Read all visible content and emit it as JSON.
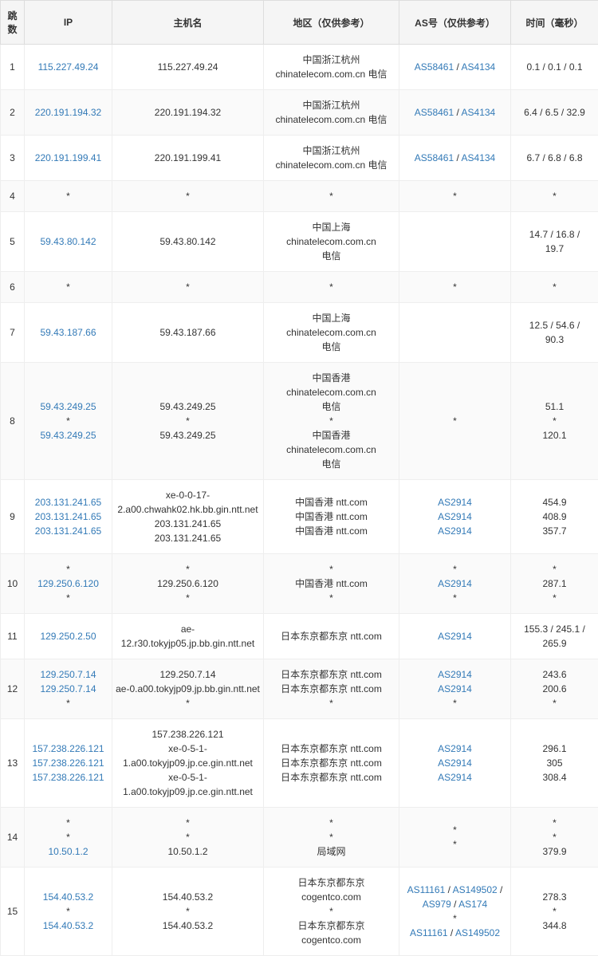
{
  "headers": {
    "hop": "跳数",
    "ip": "IP",
    "hostname": "主机名",
    "region": "地区（仅供参考）",
    "as": "AS号（仅供参考）",
    "time": "时间（毫秒）"
  },
  "rows": [
    {
      "hop": "1",
      "ip": [
        {
          "t": "link",
          "v": "115.227.49.24"
        }
      ],
      "host": [
        {
          "t": "text",
          "v": "115.227.49.24"
        }
      ],
      "region": [
        {
          "t": "text",
          "v": "中国浙江杭州"
        },
        {
          "t": "text",
          "v": "chinatelecom.com.cn 电信"
        }
      ],
      "as": [
        {
          "t": "aslist",
          "v": [
            "AS58461",
            "AS4134"
          ]
        }
      ],
      "time": [
        {
          "t": "text",
          "v": "0.1 / 0.1 / 0.1"
        }
      ]
    },
    {
      "hop": "2",
      "ip": [
        {
          "t": "link",
          "v": "220.191.194.32"
        }
      ],
      "host": [
        {
          "t": "text",
          "v": "220.191.194.32"
        }
      ],
      "region": [
        {
          "t": "text",
          "v": "中国浙江杭州"
        },
        {
          "t": "text",
          "v": "chinatelecom.com.cn 电信"
        }
      ],
      "as": [
        {
          "t": "aslist",
          "v": [
            "AS58461",
            "AS4134"
          ]
        }
      ],
      "time": [
        {
          "t": "text",
          "v": "6.4 / 6.5 / 32.9"
        }
      ]
    },
    {
      "hop": "3",
      "ip": [
        {
          "t": "link",
          "v": "220.191.199.41"
        }
      ],
      "host": [
        {
          "t": "text",
          "v": "220.191.199.41"
        }
      ],
      "region": [
        {
          "t": "text",
          "v": "中国浙江杭州"
        },
        {
          "t": "text",
          "v": "chinatelecom.com.cn 电信"
        }
      ],
      "as": [
        {
          "t": "aslist",
          "v": [
            "AS58461",
            "AS4134"
          ]
        }
      ],
      "time": [
        {
          "t": "text",
          "v": "6.7 / 6.8 / 6.8"
        }
      ]
    },
    {
      "hop": "4",
      "ip": [
        {
          "t": "text",
          "v": "*"
        }
      ],
      "host": [
        {
          "t": "text",
          "v": "*"
        }
      ],
      "region": [
        {
          "t": "text",
          "v": "*"
        }
      ],
      "as": [
        {
          "t": "text",
          "v": "*"
        }
      ],
      "time": [
        {
          "t": "text",
          "v": "*"
        }
      ]
    },
    {
      "hop": "5",
      "ip": [
        {
          "t": "link",
          "v": "59.43.80.142"
        }
      ],
      "host": [
        {
          "t": "text",
          "v": "59.43.80.142"
        }
      ],
      "region": [
        {
          "t": "text",
          "v": "中国上海 chinatelecom.com.cn"
        },
        {
          "t": "text",
          "v": "电信"
        }
      ],
      "as": [
        {
          "t": "text",
          "v": ""
        }
      ],
      "time": [
        {
          "t": "text",
          "v": "14.7 / 16.8 /"
        },
        {
          "t": "text",
          "v": "19.7"
        }
      ]
    },
    {
      "hop": "6",
      "ip": [
        {
          "t": "text",
          "v": "*"
        }
      ],
      "host": [
        {
          "t": "text",
          "v": "*"
        }
      ],
      "region": [
        {
          "t": "text",
          "v": "*"
        }
      ],
      "as": [
        {
          "t": "text",
          "v": "*"
        }
      ],
      "time": [
        {
          "t": "text",
          "v": "*"
        }
      ]
    },
    {
      "hop": "7",
      "ip": [
        {
          "t": "link",
          "v": "59.43.187.66"
        }
      ],
      "host": [
        {
          "t": "text",
          "v": "59.43.187.66"
        }
      ],
      "region": [
        {
          "t": "text",
          "v": "中国上海 chinatelecom.com.cn"
        },
        {
          "t": "text",
          "v": "电信"
        }
      ],
      "as": [
        {
          "t": "text",
          "v": ""
        }
      ],
      "time": [
        {
          "t": "text",
          "v": "12.5 / 54.6 /"
        },
        {
          "t": "text",
          "v": "90.3"
        }
      ]
    },
    {
      "hop": "8",
      "ip": [
        {
          "t": "link",
          "v": "59.43.249.25"
        },
        {
          "t": "text",
          "v": "*"
        },
        {
          "t": "link",
          "v": "59.43.249.25"
        }
      ],
      "host": [
        {
          "t": "text",
          "v": "59.43.249.25"
        },
        {
          "t": "text",
          "v": "*"
        },
        {
          "t": "text",
          "v": "59.43.249.25"
        }
      ],
      "region": [
        {
          "t": "text",
          "v": "中国香港 chinatelecom.com.cn"
        },
        {
          "t": "text",
          "v": "电信"
        },
        {
          "t": "text",
          "v": "*"
        },
        {
          "t": "text",
          "v": "中国香港 chinatelecom.com.cn"
        },
        {
          "t": "text",
          "v": "电信"
        }
      ],
      "as": [
        {
          "t": "text",
          "v": ""
        },
        {
          "t": "text",
          "v": "*"
        },
        {
          "t": "text",
          "v": ""
        }
      ],
      "time": [
        {
          "t": "text",
          "v": "51.1"
        },
        {
          "t": "text",
          "v": "*"
        },
        {
          "t": "text",
          "v": "120.1"
        }
      ]
    },
    {
      "hop": "9",
      "ip": [
        {
          "t": "link",
          "v": "203.131.241.65"
        },
        {
          "t": "link",
          "v": "203.131.241.65"
        },
        {
          "t": "link",
          "v": "203.131.241.65"
        }
      ],
      "host": [
        {
          "t": "text",
          "v": "xe-0-0-17-"
        },
        {
          "t": "text",
          "v": "2.a00.chwahk02.hk.bb.gin.ntt.net"
        },
        {
          "t": "text",
          "v": "203.131.241.65"
        },
        {
          "t": "text",
          "v": "203.131.241.65"
        }
      ],
      "region": [
        {
          "t": "text",
          "v": "中国香港 ntt.com"
        },
        {
          "t": "text",
          "v": "中国香港 ntt.com"
        },
        {
          "t": "text",
          "v": "中国香港 ntt.com"
        }
      ],
      "as": [
        {
          "t": "aslist",
          "v": [
            "AS2914"
          ]
        },
        {
          "t": "aslist",
          "v": [
            "AS2914"
          ]
        },
        {
          "t": "aslist",
          "v": [
            "AS2914"
          ]
        }
      ],
      "time": [
        {
          "t": "text",
          "v": "454.9"
        },
        {
          "t": "text",
          "v": "408.9"
        },
        {
          "t": "text",
          "v": "357.7"
        }
      ]
    },
    {
      "hop": "10",
      "ip": [
        {
          "t": "text",
          "v": "*"
        },
        {
          "t": "link",
          "v": "129.250.6.120"
        },
        {
          "t": "text",
          "v": "*"
        }
      ],
      "host": [
        {
          "t": "text",
          "v": "*"
        },
        {
          "t": "text",
          "v": "129.250.6.120"
        },
        {
          "t": "text",
          "v": "*"
        }
      ],
      "region": [
        {
          "t": "text",
          "v": "*"
        },
        {
          "t": "text",
          "v": "中国香港 ntt.com"
        },
        {
          "t": "text",
          "v": "*"
        }
      ],
      "as": [
        {
          "t": "text",
          "v": "*"
        },
        {
          "t": "aslist",
          "v": [
            "AS2914"
          ]
        },
        {
          "t": "text",
          "v": "*"
        }
      ],
      "time": [
        {
          "t": "text",
          "v": "*"
        },
        {
          "t": "text",
          "v": "287.1"
        },
        {
          "t": "text",
          "v": "*"
        }
      ]
    },
    {
      "hop": "11",
      "ip": [
        {
          "t": "link",
          "v": "129.250.2.50"
        }
      ],
      "host": [
        {
          "t": "text",
          "v": "ae-12.r30.tokyjp05.jp.bb.gin.ntt.net"
        }
      ],
      "region": [
        {
          "t": "text",
          "v": "日本东京都东京 ntt.com"
        }
      ],
      "as": [
        {
          "t": "aslist",
          "v": [
            "AS2914"
          ]
        }
      ],
      "time": [
        {
          "t": "text",
          "v": "155.3 / 245.1 /"
        },
        {
          "t": "text",
          "v": "265.9"
        }
      ]
    },
    {
      "hop": "12",
      "ip": [
        {
          "t": "link",
          "v": "129.250.7.14"
        },
        {
          "t": "link",
          "v": "129.250.7.14"
        },
        {
          "t": "text",
          "v": "*"
        }
      ],
      "host": [
        {
          "t": "text",
          "v": "129.250.7.14"
        },
        {
          "t": "text",
          "v": "ae-0.a00.tokyjp09.jp.bb.gin.ntt.net"
        },
        {
          "t": "text",
          "v": "*"
        }
      ],
      "region": [
        {
          "t": "text",
          "v": "日本东京都东京 ntt.com"
        },
        {
          "t": "text",
          "v": "日本东京都东京 ntt.com"
        },
        {
          "t": "text",
          "v": "*"
        }
      ],
      "as": [
        {
          "t": "aslist",
          "v": [
            "AS2914"
          ]
        },
        {
          "t": "aslist",
          "v": [
            "AS2914"
          ]
        },
        {
          "t": "text",
          "v": "*"
        }
      ],
      "time": [
        {
          "t": "text",
          "v": "243.6"
        },
        {
          "t": "text",
          "v": "200.6"
        },
        {
          "t": "text",
          "v": "*"
        }
      ]
    },
    {
      "hop": "13",
      "ip": [
        {
          "t": "link",
          "v": "157.238.226.121"
        },
        {
          "t": "link",
          "v": "157.238.226.121"
        },
        {
          "t": "link",
          "v": "157.238.226.121"
        }
      ],
      "host": [
        {
          "t": "text",
          "v": "157.238.226.121"
        },
        {
          "t": "text",
          "v": "xe-0-5-1-"
        },
        {
          "t": "text",
          "v": "1.a00.tokyjp09.jp.ce.gin.ntt.net"
        },
        {
          "t": "text",
          "v": "xe-0-5-1-"
        },
        {
          "t": "text",
          "v": "1.a00.tokyjp09.jp.ce.gin.ntt.net"
        }
      ],
      "region": [
        {
          "t": "text",
          "v": "日本东京都东京 ntt.com"
        },
        {
          "t": "text",
          "v": "日本东京都东京 ntt.com"
        },
        {
          "t": "text",
          "v": "日本东京都东京 ntt.com"
        }
      ],
      "as": [
        {
          "t": "aslist",
          "v": [
            "AS2914"
          ]
        },
        {
          "t": "aslist",
          "v": [
            "AS2914"
          ]
        },
        {
          "t": "aslist",
          "v": [
            "AS2914"
          ]
        }
      ],
      "time": [
        {
          "t": "text",
          "v": "296.1"
        },
        {
          "t": "text",
          "v": "305"
        },
        {
          "t": "text",
          "v": "308.4"
        }
      ]
    },
    {
      "hop": "14",
      "ip": [
        {
          "t": "text",
          "v": "*"
        },
        {
          "t": "text",
          "v": "*"
        },
        {
          "t": "link",
          "v": "10.50.1.2"
        }
      ],
      "host": [
        {
          "t": "text",
          "v": "*"
        },
        {
          "t": "text",
          "v": "*"
        },
        {
          "t": "text",
          "v": "10.50.1.2"
        }
      ],
      "region": [
        {
          "t": "text",
          "v": "*"
        },
        {
          "t": "text",
          "v": "*"
        },
        {
          "t": "text",
          "v": "局域网"
        }
      ],
      "as": [
        {
          "t": "text",
          "v": "*"
        },
        {
          "t": "text",
          "v": "*"
        },
        {
          "t": "text",
          "v": ""
        }
      ],
      "time": [
        {
          "t": "text",
          "v": "*"
        },
        {
          "t": "text",
          "v": "*"
        },
        {
          "t": "text",
          "v": "379.9"
        }
      ]
    },
    {
      "hop": "15",
      "ip": [
        {
          "t": "link",
          "v": "154.40.53.2"
        },
        {
          "t": "text",
          "v": "*"
        },
        {
          "t": "link",
          "v": "154.40.53.2"
        }
      ],
      "host": [
        {
          "t": "text",
          "v": "154.40.53.2"
        },
        {
          "t": "text",
          "v": "*"
        },
        {
          "t": "text",
          "v": "154.40.53.2"
        }
      ],
      "region": [
        {
          "t": "text",
          "v": "日本东京都东京 cogentco.com"
        },
        {
          "t": "text",
          "v": "*"
        },
        {
          "t": "text",
          "v": "日本东京都东京 cogentco.com"
        }
      ],
      "as": [
        {
          "t": "aslist",
          "v": [
            "AS11161",
            "AS149502",
            "AS979",
            "AS174"
          ]
        },
        {
          "t": "text",
          "v": "*"
        },
        {
          "t": "aslist",
          "v": [
            "AS11161",
            "AS149502"
          ]
        }
      ],
      "time": [
        {
          "t": "text",
          "v": "278.3"
        },
        {
          "t": "text",
          "v": "*"
        },
        {
          "t": "text",
          "v": "344.8"
        }
      ]
    }
  ],
  "colors": {
    "link": "#337ab7",
    "header_bg": "#f5f5f5",
    "border": "#ddd",
    "row_alt": "#fafafa"
  }
}
